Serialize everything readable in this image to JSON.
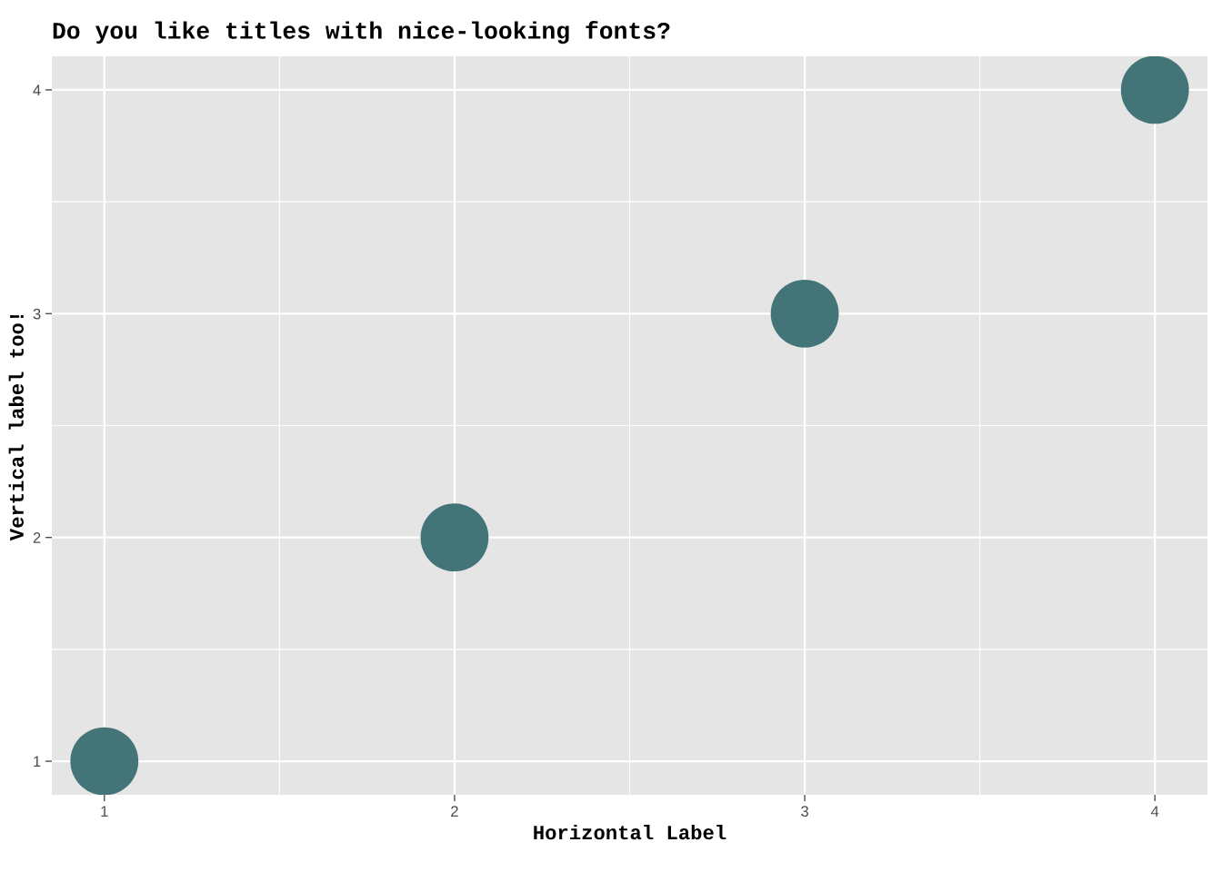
{
  "chart_data": {
    "type": "scatter",
    "title": "Do you like titles with nice-looking fonts?",
    "xlabel": "Horizontal Label",
    "ylabel": "Vertical label too!",
    "x": [
      1,
      2,
      3,
      4
    ],
    "series": [
      {
        "color": "#437478",
        "values": [
          1,
          2,
          3,
          4
        ]
      }
    ],
    "xlim": [
      0.85,
      4.15
    ],
    "ylim": [
      0.85,
      4.15
    ],
    "xticks": [
      1,
      2,
      3,
      4
    ],
    "yticks": [
      1,
      2,
      3,
      4
    ],
    "grid": true,
    "marker": "circle"
  }
}
